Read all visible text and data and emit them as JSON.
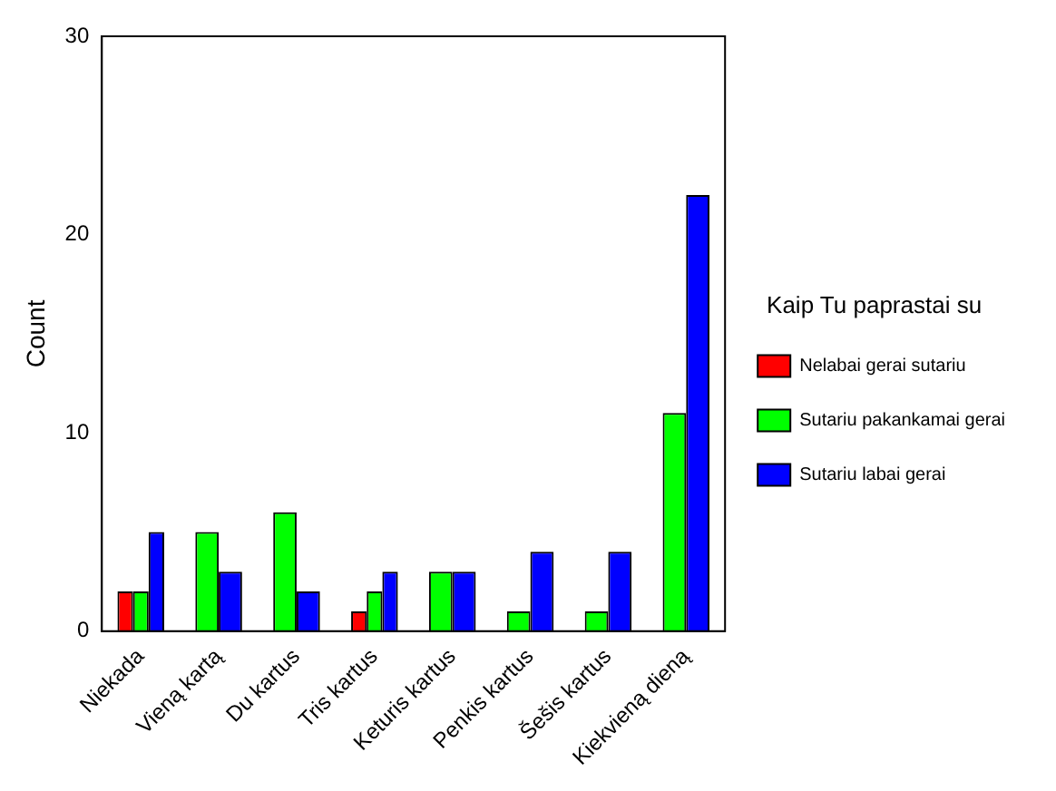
{
  "chart_data": {
    "type": "bar",
    "ylabel": "Count",
    "legend_title": "Kaip Tu paprastai su",
    "categories": [
      "Niekada",
      "Vieną kartą",
      "Du kartus",
      "Tris kartus",
      "Keturis kartus",
      "Penkis kartus",
      "Šešis kartus",
      "Kiekvieną dieną"
    ],
    "series": [
      {
        "name": "Nelabai gerai sutariu",
        "color": "#ff0000",
        "values": [
          2,
          null,
          null,
          1,
          null,
          null,
          null,
          null
        ]
      },
      {
        "name": "Sutariu pakankamai gerai",
        "color": "#00ff00",
        "values": [
          2,
          5,
          6,
          2,
          3,
          1,
          1,
          11
        ]
      },
      {
        "name": "Sutariu labai gerai",
        "color": "#0000ff",
        "values": [
          5,
          3,
          2,
          3,
          3,
          4,
          4,
          22
        ]
      }
    ],
    "ylim": [
      0,
      30
    ],
    "yticks": [
      0,
      10,
      20,
      30
    ],
    "grid": false,
    "legend": "right"
  }
}
